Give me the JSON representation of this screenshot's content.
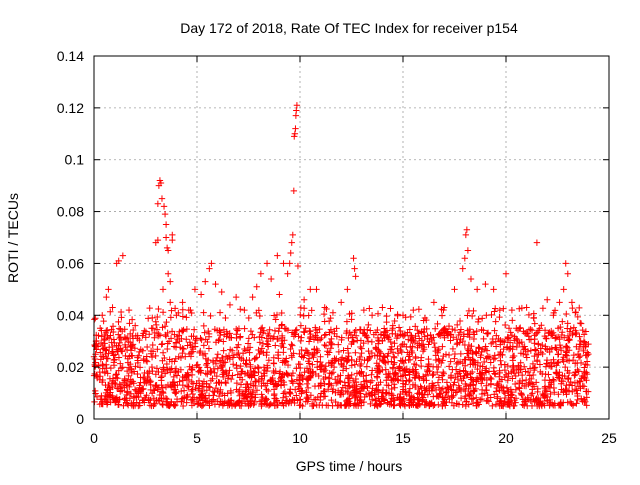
{
  "chart_data": {
    "type": "scatter",
    "title": "Day 172 of 2018, Rate Of TEC Index for receiver p154",
    "xlabel": "GPS time / hours",
    "ylabel": "ROTI / TECUs",
    "xlim": [
      0,
      25
    ],
    "ylim": [
      0,
      0.14
    ],
    "xticks": [
      0,
      5,
      10,
      15,
      20,
      25
    ],
    "xtick_labels": [
      "0",
      "5",
      "10",
      "15",
      "20",
      "25"
    ],
    "yticks": [
      0,
      0.02,
      0.04,
      0.06,
      0.08,
      0.1,
      0.12,
      0.14
    ],
    "ytick_labels": [
      "0",
      "0.02",
      "0.04",
      "0.06",
      "0.08",
      "0.1",
      "0.12",
      "0.14"
    ],
    "grid": true,
    "marker": "+",
    "marker_color": "#ff0000",
    "series": [
      {
        "name": "ROTI",
        "x_range": [
          0,
          24
        ],
        "dense_band": [
          0.005,
          0.035
        ],
        "points": [
          [
            0.0,
            0.024
          ],
          [
            0.1,
            0.03
          ],
          [
            0.2,
            0.028
          ],
          [
            0.3,
            0.035
          ],
          [
            0.4,
            0.04
          ],
          [
            0.6,
            0.047
          ],
          [
            0.7,
            0.05
          ],
          [
            0.9,
            0.043
          ],
          [
            1.1,
            0.06
          ],
          [
            1.2,
            0.061
          ],
          [
            1.4,
            0.063
          ],
          [
            1.7,
            0.042
          ],
          [
            2.0,
            0.036
          ],
          [
            2.4,
            0.033
          ],
          [
            2.8,
            0.035
          ],
          [
            3.0,
            0.068
          ],
          [
            3.1,
            0.069
          ],
          [
            3.1,
            0.083
          ],
          [
            3.15,
            0.09
          ],
          [
            3.2,
            0.092
          ],
          [
            3.25,
            0.091
          ],
          [
            3.3,
            0.085
          ],
          [
            3.35,
            0.05
          ],
          [
            3.4,
            0.082
          ],
          [
            3.45,
            0.079
          ],
          [
            3.5,
            0.075
          ],
          [
            3.5,
            0.07
          ],
          [
            3.55,
            0.066
          ],
          [
            3.6,
            0.065
          ],
          [
            3.6,
            0.056
          ],
          [
            3.7,
            0.053
          ],
          [
            3.8,
            0.069
          ],
          [
            3.8,
            0.071
          ],
          [
            3.7,
            0.045
          ],
          [
            4.0,
            0.04
          ],
          [
            4.3,
            0.045
          ],
          [
            4.6,
            0.042
          ],
          [
            4.9,
            0.05
          ],
          [
            5.2,
            0.048
          ],
          [
            5.4,
            0.053
          ],
          [
            5.6,
            0.058
          ],
          [
            5.7,
            0.06
          ],
          [
            5.9,
            0.052
          ],
          [
            6.2,
            0.049
          ],
          [
            6.6,
            0.044
          ],
          [
            6.9,
            0.047
          ],
          [
            7.3,
            0.042
          ],
          [
            7.7,
            0.047
          ],
          [
            7.9,
            0.051
          ],
          [
            8.1,
            0.056
          ],
          [
            8.4,
            0.06
          ],
          [
            8.6,
            0.054
          ],
          [
            8.9,
            0.063
          ],
          [
            9.0,
            0.048
          ],
          [
            9.2,
            0.06
          ],
          [
            9.4,
            0.056
          ],
          [
            9.5,
            0.06
          ],
          [
            9.55,
            0.064
          ],
          [
            9.6,
            0.068
          ],
          [
            9.65,
            0.071
          ],
          [
            9.7,
            0.088
          ],
          [
            9.72,
            0.109
          ],
          [
            9.75,
            0.11
          ],
          [
            9.78,
            0.112
          ],
          [
            9.8,
            0.117
          ],
          [
            9.82,
            0.119
          ],
          [
            9.85,
            0.121
          ],
          [
            9.9,
            0.059
          ],
          [
            10.2,
            0.046
          ],
          [
            10.5,
            0.05
          ],
          [
            10.8,
            0.05
          ],
          [
            11.2,
            0.043
          ],
          [
            11.6,
            0.041
          ],
          [
            12.0,
            0.045
          ],
          [
            12.3,
            0.05
          ],
          [
            12.6,
            0.062
          ],
          [
            12.65,
            0.058
          ],
          [
            12.7,
            0.055
          ],
          [
            13.1,
            0.042
          ],
          [
            13.5,
            0.04
          ],
          [
            14.0,
            0.043
          ],
          [
            14.5,
            0.035
          ],
          [
            15.0,
            0.04
          ],
          [
            15.5,
            0.042
          ],
          [
            16.0,
            0.038
          ],
          [
            16.5,
            0.045
          ],
          [
            17.0,
            0.043
          ],
          [
            17.5,
            0.05
          ],
          [
            17.9,
            0.058
          ],
          [
            18.0,
            0.062
          ],
          [
            18.05,
            0.071
          ],
          [
            18.1,
            0.073
          ],
          [
            18.15,
            0.065
          ],
          [
            18.3,
            0.054
          ],
          [
            18.6,
            0.05
          ],
          [
            19.0,
            0.052
          ],
          [
            19.4,
            0.05
          ],
          [
            19.7,
            0.042
          ],
          [
            20.0,
            0.056
          ],
          [
            20.5,
            0.035
          ],
          [
            21.0,
            0.043
          ],
          [
            21.5,
            0.068
          ],
          [
            22.0,
            0.046
          ],
          [
            22.3,
            0.04
          ],
          [
            22.6,
            0.045
          ],
          [
            22.8,
            0.05
          ],
          [
            22.9,
            0.06
          ],
          [
            23.0,
            0.056
          ],
          [
            23.2,
            0.045
          ],
          [
            23.6,
            0.037
          ],
          [
            24.0,
            0.025
          ]
        ]
      }
    ]
  }
}
